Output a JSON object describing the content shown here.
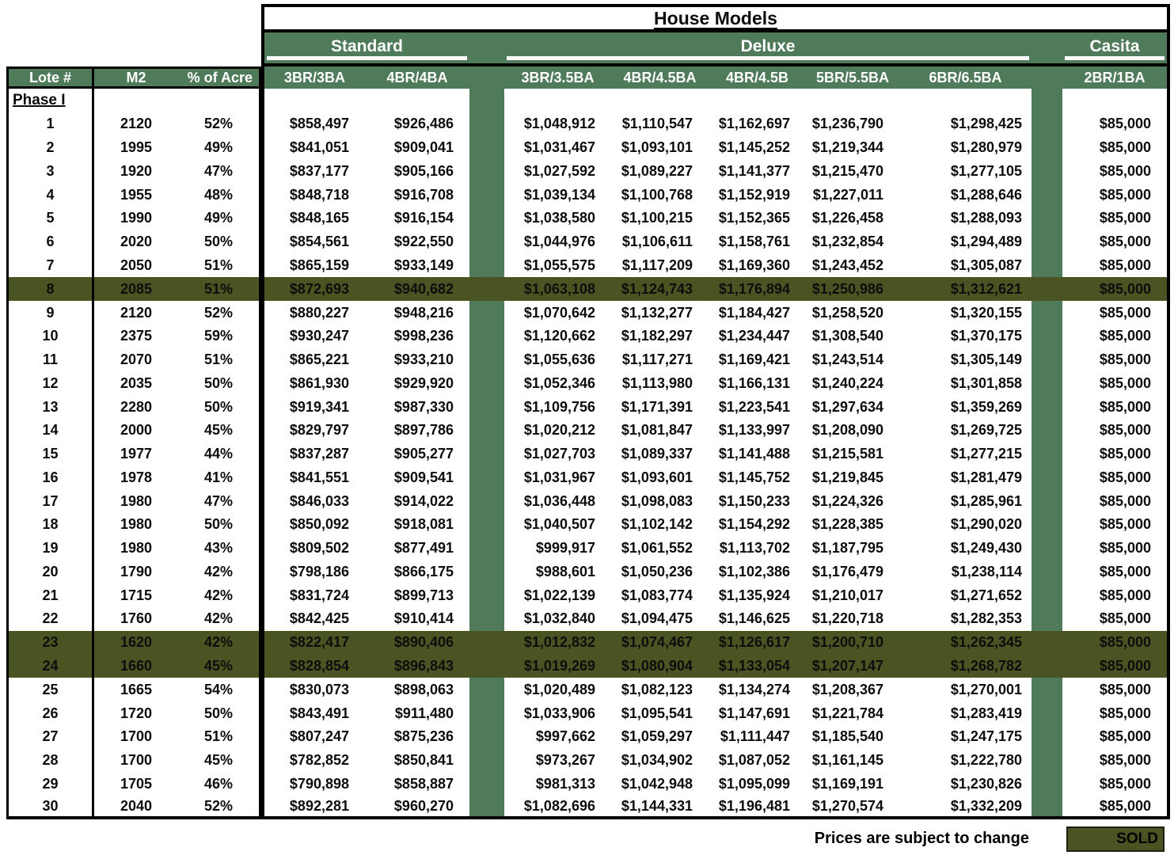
{
  "title": "House Models",
  "sections": {
    "standard": "Standard",
    "deluxe": "Deluxe",
    "casita": "Casita"
  },
  "left_headers": [
    "Lote #",
    "M2",
    "% of Acre"
  ],
  "model_headers": {
    "standard": [
      "3BR/3BA",
      "4BR/4BA"
    ],
    "deluxe": [
      "3BR/3.5BA",
      "4BR/4.5BA",
      "4BR/4.5B",
      "5BR/5.5BA",
      "6BR/6.5BA"
    ],
    "casita": [
      "2BR/1BA"
    ]
  },
  "phase_label": "Phase I",
  "sold_rows": [
    8,
    23,
    24
  ],
  "rows": [
    [
      "1",
      "2120",
      "52%",
      "$858,497",
      "$926,486",
      "$1,048,912",
      "$1,110,547",
      "$1,162,697",
      "$1,236,790",
      "$1,298,425",
      "$85,000"
    ],
    [
      "2",
      "1995",
      "49%",
      "$841,051",
      "$909,041",
      "$1,031,467",
      "$1,093,101",
      "$1,145,252",
      "$1,219,344",
      "$1,280,979",
      "$85,000"
    ],
    [
      "3",
      "1920",
      "47%",
      "$837,177",
      "$905,166",
      "$1,027,592",
      "$1,089,227",
      "$1,141,377",
      "$1,215,470",
      "$1,277,105",
      "$85,000"
    ],
    [
      "4",
      "1955",
      "48%",
      "$848,718",
      "$916,708",
      "$1,039,134",
      "$1,100,768",
      "$1,152,919",
      "$1,227,011",
      "$1,288,646",
      "$85,000"
    ],
    [
      "5",
      "1990",
      "49%",
      "$848,165",
      "$916,154",
      "$1,038,580",
      "$1,100,215",
      "$1,152,365",
      "$1,226,458",
      "$1,288,093",
      "$85,000"
    ],
    [
      "6",
      "2020",
      "50%",
      "$854,561",
      "$922,550",
      "$1,044,976",
      "$1,106,611",
      "$1,158,761",
      "$1,232,854",
      "$1,294,489",
      "$85,000"
    ],
    [
      "7",
      "2050",
      "51%",
      "$865,159",
      "$933,149",
      "$1,055,575",
      "$1,117,209",
      "$1,169,360",
      "$1,243,452",
      "$1,305,087",
      "$85,000"
    ],
    [
      "8",
      "2085",
      "51%",
      "$872,693",
      "$940,682",
      "$1,063,108",
      "$1,124,743",
      "$1,176,894",
      "$1,250,986",
      "$1,312,621",
      "$85,000"
    ],
    [
      "9",
      "2120",
      "52%",
      "$880,227",
      "$948,216",
      "$1,070,642",
      "$1,132,277",
      "$1,184,427",
      "$1,258,520",
      "$1,320,155",
      "$85,000"
    ],
    [
      "10",
      "2375",
      "59%",
      "$930,247",
      "$998,236",
      "$1,120,662",
      "$1,182,297",
      "$1,234,447",
      "$1,308,540",
      "$1,370,175",
      "$85,000"
    ],
    [
      "11",
      "2070",
      "51%",
      "$865,221",
      "$933,210",
      "$1,055,636",
      "$1,117,271",
      "$1,169,421",
      "$1,243,514",
      "$1,305,149",
      "$85,000"
    ],
    [
      "12",
      "2035",
      "50%",
      "$861,930",
      "$929,920",
      "$1,052,346",
      "$1,113,980",
      "$1,166,131",
      "$1,240,224",
      "$1,301,858",
      "$85,000"
    ],
    [
      "13",
      "2280",
      "50%",
      "$919,341",
      "$987,330",
      "$1,109,756",
      "$1,171,391",
      "$1,223,541",
      "$1,297,634",
      "$1,359,269",
      "$85,000"
    ],
    [
      "14",
      "2000",
      "45%",
      "$829,797",
      "$897,786",
      "$1,020,212",
      "$1,081,847",
      "$1,133,997",
      "$1,208,090",
      "$1,269,725",
      "$85,000"
    ],
    [
      "15",
      "1977",
      "44%",
      "$837,287",
      "$905,277",
      "$1,027,703",
      "$1,089,337",
      "$1,141,488",
      "$1,215,581",
      "$1,277,215",
      "$85,000"
    ],
    [
      "16",
      "1978",
      "41%",
      "$841,551",
      "$909,541",
      "$1,031,967",
      "$1,093,601",
      "$1,145,752",
      "$1,219,845",
      "$1,281,479",
      "$85,000"
    ],
    [
      "17",
      "1980",
      "47%",
      "$846,033",
      "$914,022",
      "$1,036,448",
      "$1,098,083",
      "$1,150,233",
      "$1,224,326",
      "$1,285,961",
      "$85,000"
    ],
    [
      "18",
      "1980",
      "50%",
      "$850,092",
      "$918,081",
      "$1,040,507",
      "$1,102,142",
      "$1,154,292",
      "$1,228,385",
      "$1,290,020",
      "$85,000"
    ],
    [
      "19",
      "1980",
      "43%",
      "$809,502",
      "$877,491",
      "$999,917",
      "$1,061,552",
      "$1,113,702",
      "$1,187,795",
      "$1,249,430",
      "$85,000"
    ],
    [
      "20",
      "1790",
      "42%",
      "$798,186",
      "$866,175",
      "$988,601",
      "$1,050,236",
      "$1,102,386",
      "$1,176,479",
      "$1,238,114",
      "$85,000"
    ],
    [
      "21",
      "1715",
      "42%",
      "$831,724",
      "$899,713",
      "$1,022,139",
      "$1,083,774",
      "$1,135,924",
      "$1,210,017",
      "$1,271,652",
      "$85,000"
    ],
    [
      "22",
      "1760",
      "42%",
      "$842,425",
      "$910,414",
      "$1,032,840",
      "$1,094,475",
      "$1,146,625",
      "$1,220,718",
      "$1,282,353",
      "$85,000"
    ],
    [
      "23",
      "1620",
      "42%",
      "$822,417",
      "$890,406",
      "$1,012,832",
      "$1,074,467",
      "$1,126,617",
      "$1,200,710",
      "$1,262,345",
      "$85,000"
    ],
    [
      "24",
      "1660",
      "45%",
      "$828,854",
      "$896,843",
      "$1,019,269",
      "$1,080,904",
      "$1,133,054",
      "$1,207,147",
      "$1,268,782",
      "$85,000"
    ],
    [
      "25",
      "1665",
      "54%",
      "$830,073",
      "$898,063",
      "$1,020,489",
      "$1,082,123",
      "$1,134,274",
      "$1,208,367",
      "$1,270,001",
      "$85,000"
    ],
    [
      "26",
      "1720",
      "50%",
      "$843,491",
      "$911,480",
      "$1,033,906",
      "$1,095,541",
      "$1,147,691",
      "$1,221,784",
      "$1,283,419",
      "$85,000"
    ],
    [
      "27",
      "1700",
      "51%",
      "$807,247",
      "$875,236",
      "$997,662",
      "$1,059,297",
      "$1,111,447",
      "$1,185,540",
      "$1,247,175",
      "$85,000"
    ],
    [
      "28",
      "1700",
      "45%",
      "$782,852",
      "$850,841",
      "$973,267",
      "$1,034,902",
      "$1,087,052",
      "$1,161,145",
      "$1,222,780",
      "$85,000"
    ],
    [
      "29",
      "1705",
      "46%",
      "$790,898",
      "$858,887",
      "$981,313",
      "$1,042,948",
      "$1,095,099",
      "$1,169,191",
      "$1,230,826",
      "$85,000"
    ],
    [
      "30",
      "2040",
      "52%",
      "$892,281",
      "$960,270",
      "$1,082,696",
      "$1,144,331",
      "$1,196,481",
      "$1,270,574",
      "$1,332,209",
      "$85,000"
    ]
  ],
  "footer": {
    "note": "Prices are subject to change",
    "sold_label": "SOLD"
  },
  "colors": {
    "header_green": "#4f7b5a",
    "sold_olive": "#4a5422",
    "border_black": "#000000"
  }
}
